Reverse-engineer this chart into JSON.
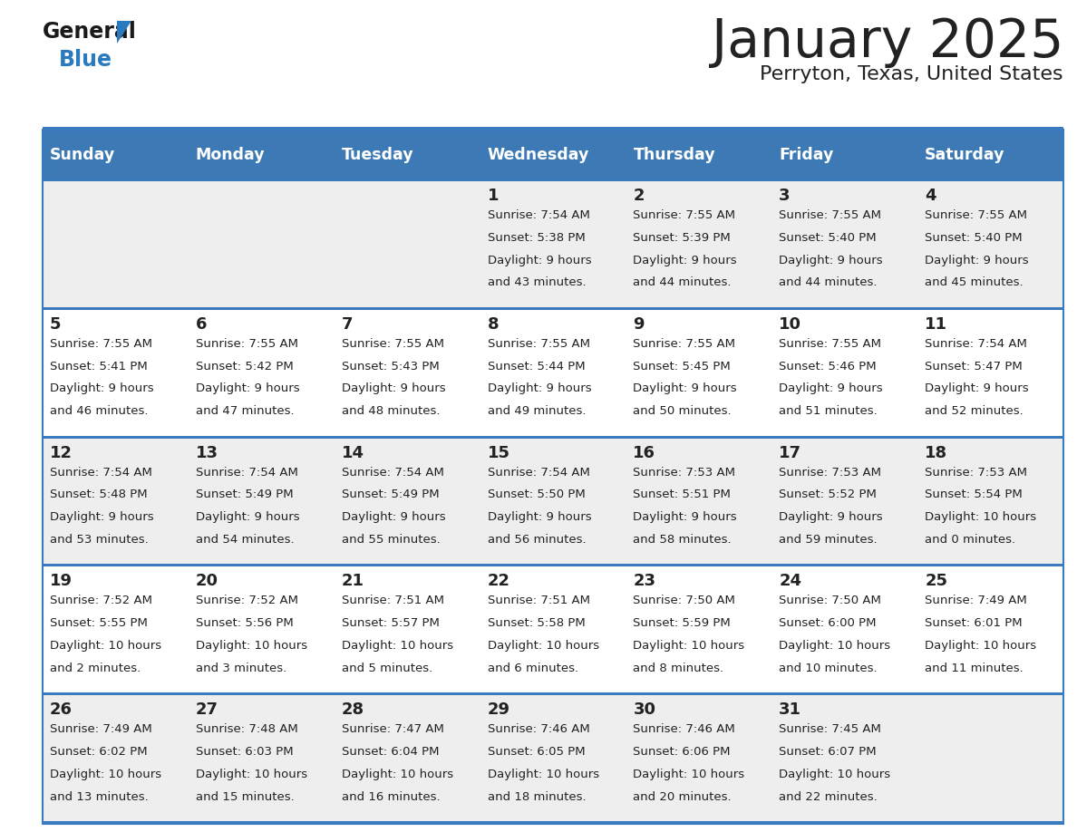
{
  "title": "January 2025",
  "subtitle": "Perryton, Texas, United States",
  "days_of_week": [
    "Sunday",
    "Monday",
    "Tuesday",
    "Wednesday",
    "Thursday",
    "Friday",
    "Saturday"
  ],
  "header_bg": "#3d7ab5",
  "header_text": "#ffffff",
  "row_bg_light": "#eeeeee",
  "row_bg_white": "#ffffff",
  "divider_color": "#3a7abf",
  "text_color": "#222222",
  "title_color": "#222222",
  "logo_general_color": "#1a1a1a",
  "logo_blue_color": "#2a7abf",
  "calendar_data": [
    [
      {
        "day": "",
        "sunrise": "",
        "sunset": "",
        "daylight_l1": "",
        "daylight_l2": ""
      },
      {
        "day": "",
        "sunrise": "",
        "sunset": "",
        "daylight_l1": "",
        "daylight_l2": ""
      },
      {
        "day": "",
        "sunrise": "",
        "sunset": "",
        "daylight_l1": "",
        "daylight_l2": ""
      },
      {
        "day": "1",
        "sunrise": "7:54 AM",
        "sunset": "5:38 PM",
        "daylight_l1": "Daylight: 9 hours",
        "daylight_l2": "and 43 minutes."
      },
      {
        "day": "2",
        "sunrise": "7:55 AM",
        "sunset": "5:39 PM",
        "daylight_l1": "Daylight: 9 hours",
        "daylight_l2": "and 44 minutes."
      },
      {
        "day": "3",
        "sunrise": "7:55 AM",
        "sunset": "5:40 PM",
        "daylight_l1": "Daylight: 9 hours",
        "daylight_l2": "and 44 minutes."
      },
      {
        "day": "4",
        "sunrise": "7:55 AM",
        "sunset": "5:40 PM",
        "daylight_l1": "Daylight: 9 hours",
        "daylight_l2": "and 45 minutes."
      }
    ],
    [
      {
        "day": "5",
        "sunrise": "7:55 AM",
        "sunset": "5:41 PM",
        "daylight_l1": "Daylight: 9 hours",
        "daylight_l2": "and 46 minutes."
      },
      {
        "day": "6",
        "sunrise": "7:55 AM",
        "sunset": "5:42 PM",
        "daylight_l1": "Daylight: 9 hours",
        "daylight_l2": "and 47 minutes."
      },
      {
        "day": "7",
        "sunrise": "7:55 AM",
        "sunset": "5:43 PM",
        "daylight_l1": "Daylight: 9 hours",
        "daylight_l2": "and 48 minutes."
      },
      {
        "day": "8",
        "sunrise": "7:55 AM",
        "sunset": "5:44 PM",
        "daylight_l1": "Daylight: 9 hours",
        "daylight_l2": "and 49 minutes."
      },
      {
        "day": "9",
        "sunrise": "7:55 AM",
        "sunset": "5:45 PM",
        "daylight_l1": "Daylight: 9 hours",
        "daylight_l2": "and 50 minutes."
      },
      {
        "day": "10",
        "sunrise": "7:55 AM",
        "sunset": "5:46 PM",
        "daylight_l1": "Daylight: 9 hours",
        "daylight_l2": "and 51 minutes."
      },
      {
        "day": "11",
        "sunrise": "7:54 AM",
        "sunset": "5:47 PM",
        "daylight_l1": "Daylight: 9 hours",
        "daylight_l2": "and 52 minutes."
      }
    ],
    [
      {
        "day": "12",
        "sunrise": "7:54 AM",
        "sunset": "5:48 PM",
        "daylight_l1": "Daylight: 9 hours",
        "daylight_l2": "and 53 minutes."
      },
      {
        "day": "13",
        "sunrise": "7:54 AM",
        "sunset": "5:49 PM",
        "daylight_l1": "Daylight: 9 hours",
        "daylight_l2": "and 54 minutes."
      },
      {
        "day": "14",
        "sunrise": "7:54 AM",
        "sunset": "5:49 PM",
        "daylight_l1": "Daylight: 9 hours",
        "daylight_l2": "and 55 minutes."
      },
      {
        "day": "15",
        "sunrise": "7:54 AM",
        "sunset": "5:50 PM",
        "daylight_l1": "Daylight: 9 hours",
        "daylight_l2": "and 56 minutes."
      },
      {
        "day": "16",
        "sunrise": "7:53 AM",
        "sunset": "5:51 PM",
        "daylight_l1": "Daylight: 9 hours",
        "daylight_l2": "and 58 minutes."
      },
      {
        "day": "17",
        "sunrise": "7:53 AM",
        "sunset": "5:52 PM",
        "daylight_l1": "Daylight: 9 hours",
        "daylight_l2": "and 59 minutes."
      },
      {
        "day": "18",
        "sunrise": "7:53 AM",
        "sunset": "5:54 PM",
        "daylight_l1": "Daylight: 10 hours",
        "daylight_l2": "and 0 minutes."
      }
    ],
    [
      {
        "day": "19",
        "sunrise": "7:52 AM",
        "sunset": "5:55 PM",
        "daylight_l1": "Daylight: 10 hours",
        "daylight_l2": "and 2 minutes."
      },
      {
        "day": "20",
        "sunrise": "7:52 AM",
        "sunset": "5:56 PM",
        "daylight_l1": "Daylight: 10 hours",
        "daylight_l2": "and 3 minutes."
      },
      {
        "day": "21",
        "sunrise": "7:51 AM",
        "sunset": "5:57 PM",
        "daylight_l1": "Daylight: 10 hours",
        "daylight_l2": "and 5 minutes."
      },
      {
        "day": "22",
        "sunrise": "7:51 AM",
        "sunset": "5:58 PM",
        "daylight_l1": "Daylight: 10 hours",
        "daylight_l2": "and 6 minutes."
      },
      {
        "day": "23",
        "sunrise": "7:50 AM",
        "sunset": "5:59 PM",
        "daylight_l1": "Daylight: 10 hours",
        "daylight_l2": "and 8 minutes."
      },
      {
        "day": "24",
        "sunrise": "7:50 AM",
        "sunset": "6:00 PM",
        "daylight_l1": "Daylight: 10 hours",
        "daylight_l2": "and 10 minutes."
      },
      {
        "day": "25",
        "sunrise": "7:49 AM",
        "sunset": "6:01 PM",
        "daylight_l1": "Daylight: 10 hours",
        "daylight_l2": "and 11 minutes."
      }
    ],
    [
      {
        "day": "26",
        "sunrise": "7:49 AM",
        "sunset": "6:02 PM",
        "daylight_l1": "Daylight: 10 hours",
        "daylight_l2": "and 13 minutes."
      },
      {
        "day": "27",
        "sunrise": "7:48 AM",
        "sunset": "6:03 PM",
        "daylight_l1": "Daylight: 10 hours",
        "daylight_l2": "and 15 minutes."
      },
      {
        "day": "28",
        "sunrise": "7:47 AM",
        "sunset": "6:04 PM",
        "daylight_l1": "Daylight: 10 hours",
        "daylight_l2": "and 16 minutes."
      },
      {
        "day": "29",
        "sunrise": "7:46 AM",
        "sunset": "6:05 PM",
        "daylight_l1": "Daylight: 10 hours",
        "daylight_l2": "and 18 minutes."
      },
      {
        "day": "30",
        "sunrise": "7:46 AM",
        "sunset": "6:06 PM",
        "daylight_l1": "Daylight: 10 hours",
        "daylight_l2": "and 20 minutes."
      },
      {
        "day": "31",
        "sunrise": "7:45 AM",
        "sunset": "6:07 PM",
        "daylight_l1": "Daylight: 10 hours",
        "daylight_l2": "and 22 minutes."
      },
      {
        "day": "",
        "sunrise": "",
        "sunset": "",
        "daylight_l1": "",
        "daylight_l2": ""
      }
    ]
  ]
}
